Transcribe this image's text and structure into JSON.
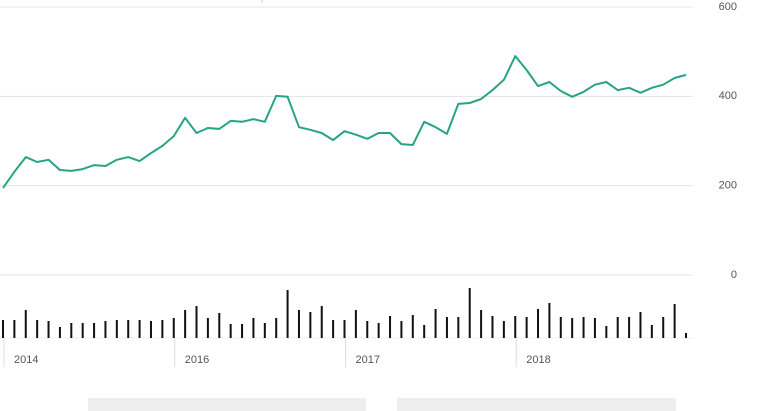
{
  "chart_data": {
    "type": "line",
    "categories": [
      "2014",
      null,
      null,
      null,
      null,
      null,
      null,
      null,
      null,
      null,
      null,
      null,
      null,
      null,
      null,
      "2016",
      null,
      null,
      null,
      null,
      null,
      null,
      null,
      null,
      null,
      null,
      null,
      null,
      null,
      null,
      "2017",
      null,
      null,
      null,
      null,
      null,
      null,
      null,
      null,
      null,
      null,
      null,
      null,
      null,
      null,
      "2018",
      null,
      null,
      null,
      null,
      null,
      null,
      null,
      null,
      null,
      null,
      null,
      null,
      null,
      null,
      null
    ],
    "series": [
      {
        "type": "line",
        "color": "#26a485",
        "values": [
          195,
          231,
          264,
          253,
          258,
          235,
          233,
          237,
          246,
          244,
          258,
          264,
          255,
          273,
          289,
          311,
          352,
          318,
          329,
          327,
          345,
          343,
          349,
          343,
          401,
          399,
          331,
          325,
          318,
          302,
          322,
          314,
          305,
          318,
          318,
          293,
          291,
          343,
          331,
          316,
          383,
          385,
          394,
          414,
          437,
          490,
          459,
          423,
          432,
          412,
          399,
          410,
          426,
          432,
          414,
          419,
          408,
          419,
          426,
          441,
          448
        ]
      },
      {
        "type": "bar",
        "axis": "y2",
        "color": "#111111",
        "values": [
          18,
          18,
          28,
          18,
          17,
          11,
          15,
          15,
          15,
          17,
          18,
          18,
          18,
          17,
          18,
          20,
          28,
          32,
          20,
          25,
          14,
          14,
          20,
          15,
          20,
          48,
          28,
          26,
          32,
          18,
          18,
          28,
          17,
          15,
          22,
          17,
          23,
          13,
          29,
          21,
          21,
          50,
          28,
          22,
          17,
          22,
          21,
          29,
          35,
          21,
          20,
          21,
          20,
          12,
          21,
          21,
          26,
          13,
          21,
          34,
          5
        ]
      }
    ],
    "ylim": [
      0,
      600
    ],
    "yticks": [
      0,
      200,
      400,
      600
    ],
    "y2lim": [
      0,
      55
    ],
    "grid": true
  }
}
